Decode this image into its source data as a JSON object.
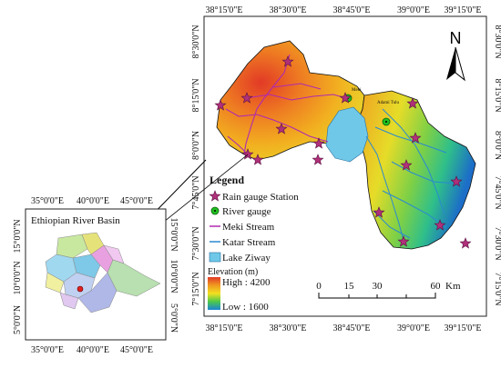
{
  "main_map": {
    "top_ticks": [
      "38°15'0\"E",
      "38°30'0\"E",
      "38°45'0\"E",
      "39°0'0\"E",
      "39°15'0\"E"
    ],
    "bottom_ticks": [
      "38°15'0\"E",
      "38°30'0\"E",
      "38°45'0\"E",
      "39°0'0\"E",
      "39°15'0\"E"
    ],
    "left_ticks": [
      "8°30'0\"N",
      "8°15'0\"N",
      "8°0'0\"N",
      "7°45'0\"N",
      "7°30'0\"N",
      "7°15'0\"N"
    ],
    "right_ticks": [
      "8°30'0\"N",
      "8°15'0\"N",
      "8°0'0\"N",
      "7°45'0\"N",
      "7°30'0\"N",
      "7°15'0\"N"
    ],
    "town_labels": [
      "Meki",
      "Adami Tulu"
    ],
    "north_label": "N",
    "scale_bar": {
      "ticks": [
        "0",
        "15",
        "30",
        "60"
      ],
      "unit": "Km"
    }
  },
  "legend": {
    "title": "Legend",
    "items": [
      {
        "label": "Rain gauge Station",
        "symbol": "star",
        "color": "#b0307a"
      },
      {
        "label": "River gauge",
        "symbol": "dot",
        "color": "#20c020"
      },
      {
        "label": "Meki Stream",
        "symbol": "line",
        "color": "#b02ab0"
      },
      {
        "label": "Katar Stream",
        "symbol": "line",
        "color": "#2a8ad0"
      },
      {
        "label": "Lake Ziway",
        "symbol": "patch",
        "color": "#6fc8e8"
      }
    ],
    "elevation": {
      "title": "Elevation (m)",
      "high": "High : 4200",
      "low": "Low : 1600"
    }
  },
  "inset": {
    "title": "Ethiopian River Basin",
    "top_ticks": [
      "35°0'0\"E",
      "40°0'0\"E",
      "45°0'0\"E"
    ],
    "bottom_ticks": [
      "35°0'0\"E",
      "40°0'0\"E",
      "45°0'0\"E"
    ],
    "left_ticks": [
      "15°0'0\"N",
      "10°0'0\"N",
      "5°0'0\"N"
    ],
    "right_ticks": [
      "15°0'0\"N",
      "10°0'0\"N",
      "5°0'0\"N"
    ]
  },
  "colors": {
    "meki_stream": "#b02ab0",
    "katar_stream": "#2a8ad0",
    "lake": "#6fc8e8",
    "rain_gauge": "#b0307a",
    "river_gauge": "#20c020",
    "elev_high": "#e8402a",
    "elev_low": "#1a8ad8"
  }
}
